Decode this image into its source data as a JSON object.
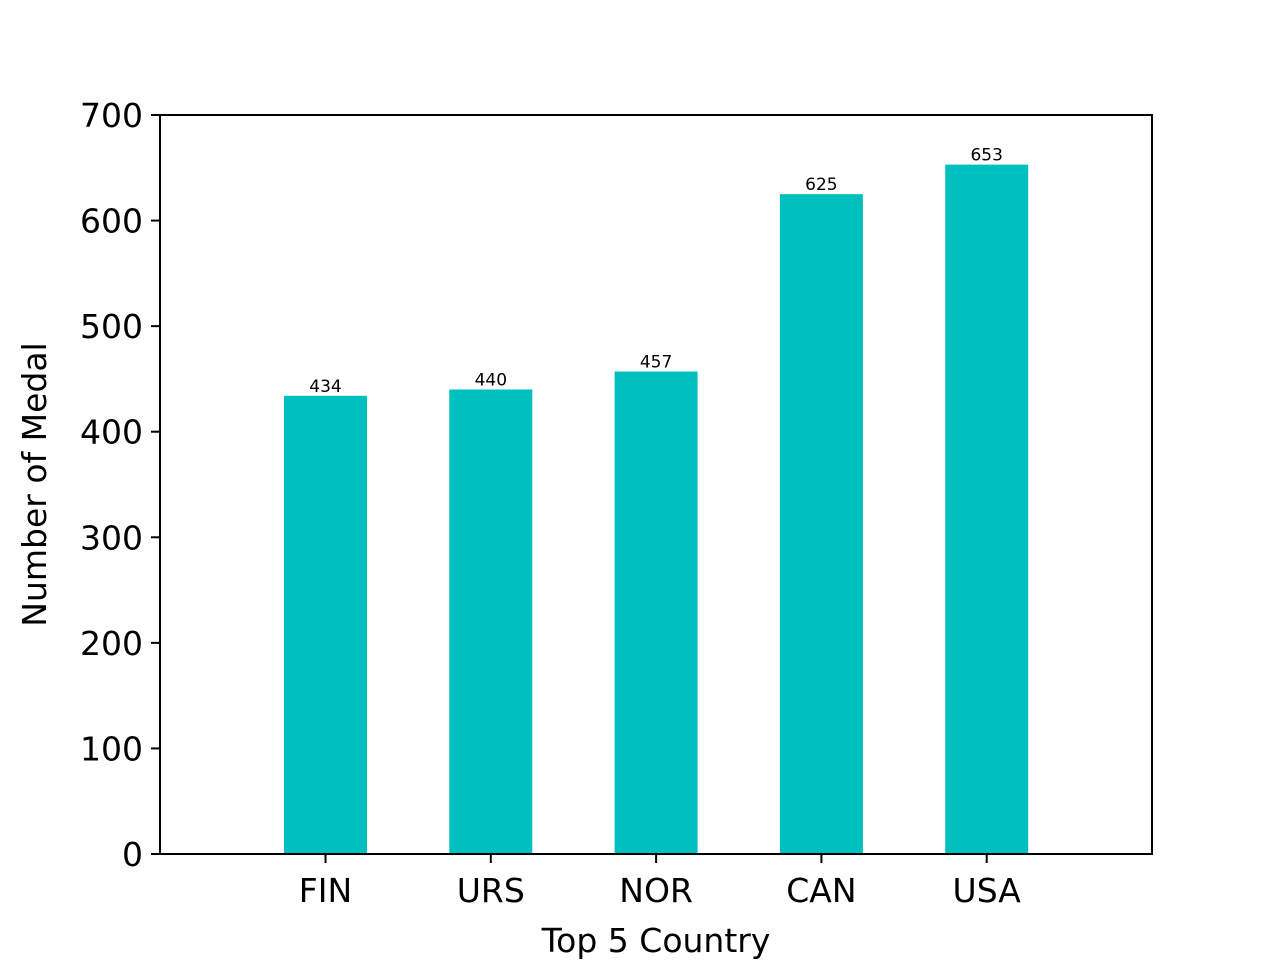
{
  "chart_data": {
    "type": "bar",
    "title": "",
    "xlabel": "Top 5 Country",
    "ylabel": "Number of Medal",
    "categories": [
      "FIN",
      "URS",
      "NOR",
      "CAN",
      "USA"
    ],
    "values": [
      434,
      440,
      457,
      625,
      653
    ],
    "data_labels": [
      "434",
      "440",
      "457",
      "625",
      "653"
    ],
    "ylim": [
      0,
      700
    ],
    "yticks": [
      0,
      100,
      200,
      300,
      400,
      500,
      600,
      700
    ],
    "ytick_labels": [
      "0",
      "100",
      "200",
      "300",
      "400",
      "500",
      "600",
      "700"
    ],
    "grid": false,
    "legend": "none",
    "bar_color": "#00bfbf"
  }
}
